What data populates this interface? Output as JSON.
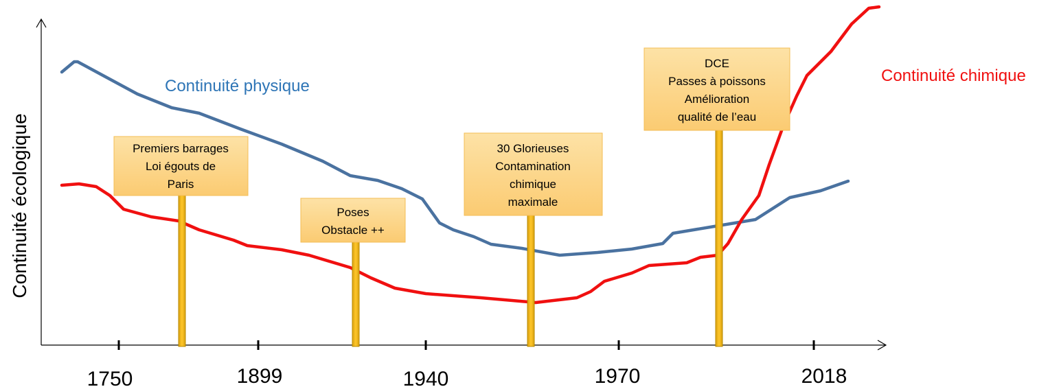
{
  "y_axis_label": "Continuité écologique",
  "x_labels": [
    "1750",
    "1899",
    "1940",
    "1970",
    "2018"
  ],
  "curves": [
    {
      "label": "Continuité physique"
    },
    {
      "label": "Continuité chimique"
    }
  ],
  "annotations": [
    {
      "lines": [
        "Premiers barrages",
        "Loi égouts de",
        "Paris"
      ]
    },
    {
      "lines": [
        "Poses",
        "Obstacle ++"
      ]
    },
    {
      "lines": [
        "30 Glorieuses",
        "Contamination",
        "chimique",
        "maximale"
      ]
    },
    {
      "lines": [
        "DCE",
        "Passes à poissons",
        "Amélioration",
        "qualité de l’eau"
      ]
    }
  ]
}
